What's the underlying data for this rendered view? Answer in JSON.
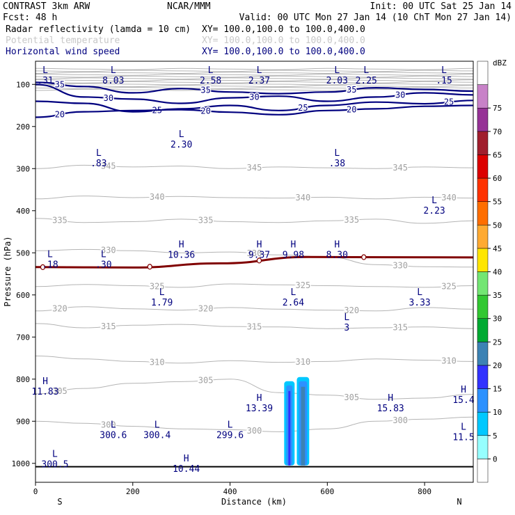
{
  "header": {
    "model": "CONTRAST  3km ARW",
    "org": "NCAR/MMM",
    "init": "Init: 00 UTC Sat 25 Jan 14",
    "fcst": "Fcst:   48 h",
    "valid": "Valid: 00 UTC Mon 27 Jan 14 (10 ChT Mon 27 Jan 14)"
  },
  "legend_fields": [
    {
      "name": "Radar reflectivity (lamda = 10 cm)",
      "xy": "XY= 100.0,100.0 to 100.0,400.0",
      "color": "#000000"
    },
    {
      "name": "Potential temperature",
      "xy": "XY= 100.0,100.0 to 100.0,400.0",
      "color": "#c8c8c8"
    },
    {
      "name": "Horizontal wind speed",
      "xy": "XY= 100.0,100.0 to 100.0,400.0",
      "color": "#00007f"
    }
  ],
  "chart_data": {
    "type": "cross-section contour",
    "xlabel": "Distance (km)",
    "ylabel": "Pressure (hPa)",
    "xlim": [
      0,
      900
    ],
    "ylim": [
      1045,
      45
    ],
    "x_ticks": [
      0,
      200,
      400,
      600,
      800
    ],
    "y_ticks": [
      100,
      200,
      300,
      400,
      500,
      600,
      700,
      800,
      900,
      1000
    ],
    "endpoints": {
      "left": "S",
      "right": "N"
    },
    "colorbar": {
      "unit": "dBZ",
      "levels": [
        0,
        5,
        10,
        15,
        20,
        25,
        30,
        35,
        40,
        45,
        50,
        55,
        60,
        65,
        70,
        75
      ],
      "colors": [
        "#ffffff",
        "#96ffff",
        "#00c8ff",
        "#2d91ff",
        "#3232ff",
        "#3c82b4",
        "#00aa32",
        "#32c832",
        "#73e673",
        "#ffe600",
        "#ffaa32",
        "#ff6e00",
        "#ff3200",
        "#dc0000",
        "#a01e2d",
        "#963296",
        "#c882c8",
        "#ffffff"
      ]
    },
    "theta_contours": [
      {
        "label": "345",
        "p": [
          300,
          292,
          296,
          294,
          300,
          296,
          298,
          300,
          296,
          298
        ]
      },
      {
        "label": "340",
        "p": [
          372,
          365,
          369,
          366,
          369,
          370,
          368,
          372,
          368,
          370
        ]
      },
      {
        "label": "335",
        "p": [
          418,
          428,
          426,
          420,
          426,
          428,
          424,
          420,
          430,
          424
        ]
      },
      {
        "label": "330",
        "p": [
          495,
          492,
          495,
          500,
          498,
          505,
          510,
          528,
          533,
          534
        ]
      },
      {
        "label": "325",
        "p": [
          580,
          575,
          578,
          582,
          574,
          576,
          578,
          580,
          582,
          578
        ]
      },
      {
        "label": "320",
        "p": [
          638,
          628,
          633,
          636,
          630,
          634,
          636,
          638,
          630,
          634
        ]
      },
      {
        "label": "315",
        "p": [
          668,
          678,
          672,
          670,
          675,
          676,
          680,
          678,
          676,
          680
        ]
      },
      {
        "label": "310",
        "p": [
          745,
          752,
          758,
          762,
          756,
          760,
          758,
          752,
          755,
          758
        ]
      },
      {
        "label": "305",
        "p": [
          835,
          822,
          810,
          806,
          800,
          832,
          838,
          848,
          845,
          836
        ]
      },
      {
        "label": "300",
        "p": [
          900,
          905,
          912,
          918,
          920,
          925,
          918,
          900,
          895,
          890
        ]
      }
    ],
    "wind_contours": [
      {
        "label": "35",
        "p": [
          95,
          105,
          120,
          110,
          118,
          122,
          118,
          108,
          112,
          116
        ]
      },
      {
        "label": "30",
        "p": [
          100,
          130,
          135,
          145,
          132,
          128,
          140,
          130,
          120,
          125
        ]
      },
      {
        "label": "25",
        "p": [
          140,
          145,
          165,
          158,
          150,
          162,
          150,
          142,
          146,
          138
        ]
      },
      {
        "label": "20",
        "p": [
          178,
          165,
          162,
          160,
          166,
          172,
          162,
          158,
          152,
          150
        ]
      }
    ],
    "tropopause": [
      [
        0,
        534
      ],
      [
        200,
        535
      ],
      [
        380,
        525
      ],
      [
        560,
        510
      ],
      [
        900,
        511
      ]
    ],
    "reflectivity_cells": [
      {
        "x_start": 517,
        "x_end": 527,
        "p_top": 805,
        "p_bottom": 1005,
        "dbz": 15
      },
      {
        "x_start": 543,
        "x_end": 557,
        "p_top": 795,
        "p_bottom": 1005,
        "dbz": 20
      }
    ],
    "surface": 1008,
    "hl_markers": [
      {
        "t": "L",
        "v": ".31",
        "x": 0,
        "p": 73,
        "g": true
      },
      {
        "t": "L",
        "v": "8.03",
        "x": 160,
        "p": 73,
        "g": true
      },
      {
        "t": "L",
        "v": "2.58",
        "x": 360,
        "p": 73,
        "g": true
      },
      {
        "t": "L",
        "v": "2.37",
        "x": 460,
        "p": 73,
        "g": true
      },
      {
        "t": "L",
        "v": "2.03",
        "x": 620,
        "p": 73,
        "g": true
      },
      {
        "t": "L",
        "v": "2.25",
        "x": 680,
        "p": 73,
        "g": true
      },
      {
        "t": "L",
        "v": ".15",
        "x": 840,
        "p": 73,
        "g": true
      },
      {
        "t": "L",
        "v": "2.30",
        "x": 300,
        "p": 225
      },
      {
        "t": "L",
        "v": ".83",
        "x": 130,
        "p": 270
      },
      {
        "t": "L",
        "v": ".38",
        "x": 620,
        "p": 270
      },
      {
        "t": "L",
        "v": "2.23",
        "x": 820,
        "p": 382
      },
      {
        "t": "H",
        "v": "10.36",
        "x": 300,
        "p": 487
      },
      {
        "t": "H",
        "v": "9.37",
        "x": 460,
        "p": 487
      },
      {
        "t": "H",
        "v": "9.98",
        "x": 530,
        "p": 487
      },
      {
        "t": "H",
        "v": "8.30",
        "x": 620,
        "p": 487
      },
      {
        "t": "L",
        "v": ".18",
        "x": 30,
        "p": 510
      },
      {
        "t": "L",
        "v": ".30",
        "x": 140,
        "p": 510
      },
      {
        "t": "L",
        "v": "1.79",
        "x": 260,
        "p": 600
      },
      {
        "t": "L",
        "v": "2.64",
        "x": 530,
        "p": 600
      },
      {
        "t": "L",
        "v": "3.33",
        "x": 790,
        "p": 600
      },
      {
        "t": "L",
        "v": "3",
        "x": 640,
        "p": 660
      },
      {
        "t": "H",
        "v": "11.83",
        "x": 20,
        "p": 812
      },
      {
        "t": "H",
        "v": "13.39",
        "x": 460,
        "p": 852
      },
      {
        "t": "H",
        "v": "15.83",
        "x": 730,
        "p": 852
      },
      {
        "t": "H",
        "v": "15.4",
        "x": 880,
        "p": 832
      },
      {
        "t": "L",
        "v": "300.6",
        "x": 160,
        "p": 915,
        "g": true
      },
      {
        "t": "L",
        "v": "300.4",
        "x": 250,
        "p": 915,
        "g": true
      },
      {
        "t": "L",
        "v": "299.6",
        "x": 400,
        "p": 915,
        "g": true
      },
      {
        "t": "L",
        "v": "300.5",
        "x": 40,
        "p": 985,
        "g": true
      },
      {
        "t": "H",
        "v": "10.44",
        "x": 310,
        "p": 995
      },
      {
        "t": "L",
        "v": "11.5",
        "x": 880,
        "p": 920
      }
    ]
  }
}
